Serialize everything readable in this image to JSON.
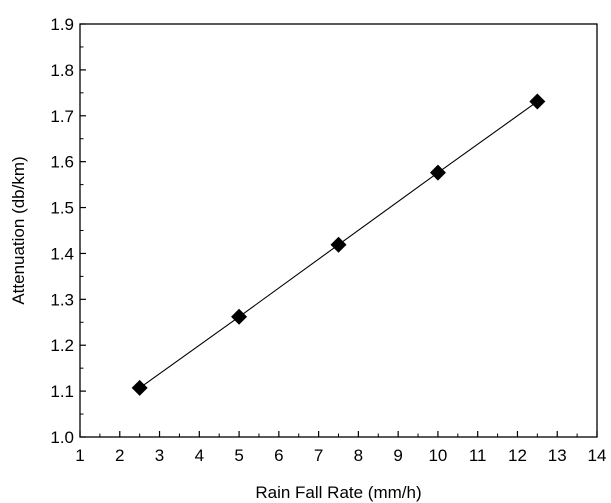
{
  "chart_data": {
    "type": "line",
    "title": "",
    "xlabel": "Rain Fall Rate (mm/h)",
    "ylabel": "Attenuation (db/km)",
    "xlim": [
      1,
      14
    ],
    "ylim": [
      1.0,
      1.9
    ],
    "x_ticks": [
      "1",
      "2",
      "3",
      "4",
      "5",
      "6",
      "7",
      "8",
      "9",
      "10",
      "11",
      "12",
      "13",
      "14"
    ],
    "y_ticks": [
      "1.0",
      "1.1",
      "1.2",
      "1.3",
      "1.4",
      "1.5",
      "1.6",
      "1.7",
      "1.8",
      "1.9"
    ],
    "grid": false,
    "legend": "none",
    "marker": "diamond",
    "line_color": "#000000",
    "marker_color": "#000000",
    "series": [
      {
        "x": [
          2.5,
          5,
          7.5,
          10,
          12.5
        ],
        "y": [
          1.107,
          1.262,
          1.419,
          1.576,
          1.731
        ]
      }
    ]
  }
}
